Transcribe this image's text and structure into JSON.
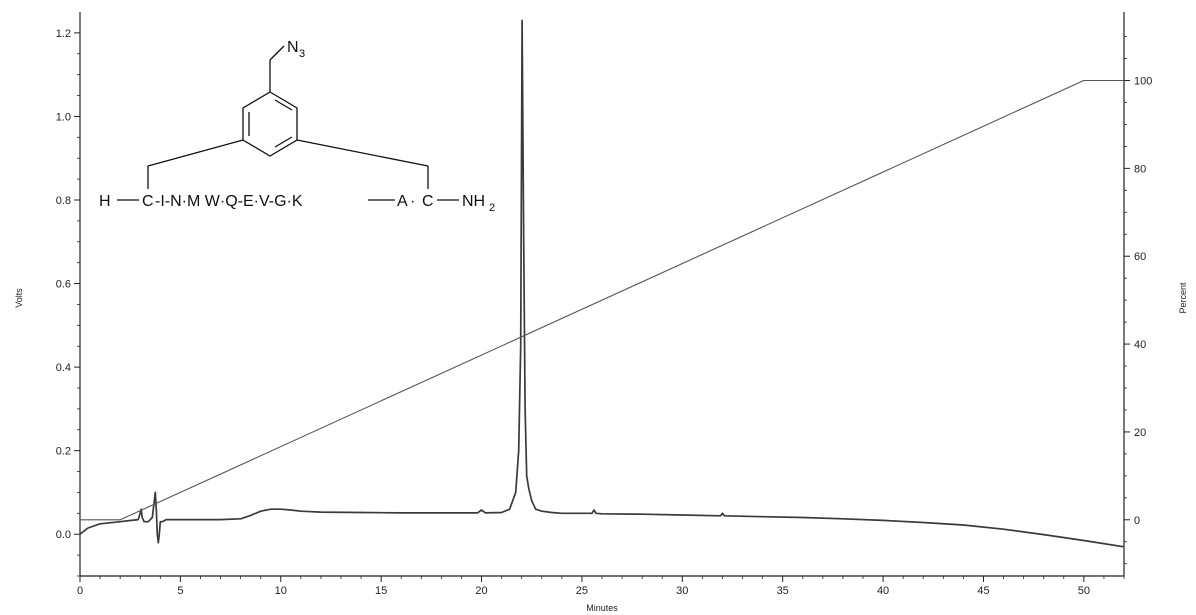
{
  "chart_data": {
    "type": "line",
    "xlabel": "Minutes",
    "ylabel": "Volts",
    "y2label": "Percent",
    "xlim": [
      0,
      52
    ],
    "ylim": [
      -0.1,
      1.25
    ],
    "y2lim": [
      -12.8,
      115.6
    ],
    "x_ticks": [
      0,
      5,
      10,
      15,
      20,
      25,
      30,
      35,
      40,
      45,
      50
    ],
    "y_ticks": [
      0.0,
      0.2,
      0.4,
      0.6,
      0.8,
      1.0,
      1.2
    ],
    "y_tick_labels": [
      "0.0",
      "0.2",
      "0.4",
      "0.6",
      "0.8",
      "1.0",
      "1.2"
    ],
    "y2_ticks": [
      0,
      20,
      40,
      60,
      80,
      100
    ],
    "grid": false,
    "colors": {
      "trace": "#3a3a3a",
      "gradient": "#555555",
      "axis": "#222222"
    },
    "series": [
      {
        "axis": "left",
        "x": [
          0,
          0.4,
          1,
          2,
          2.9,
          3.0,
          3.05,
          3.1,
          3.2,
          3.4,
          3.6,
          3.7,
          3.75,
          3.8,
          3.85,
          3.9,
          3.95,
          4.0,
          4.1,
          4.3,
          5,
          6,
          7,
          8,
          8.5,
          9,
          9.5,
          10,
          10.5,
          11,
          12,
          14,
          16,
          18,
          19.8,
          20.0,
          20.2,
          21.0,
          21.4,
          21.7,
          21.85,
          21.95,
          22.02,
          22.1,
          22.17,
          22.25,
          22.35,
          22.5,
          22.7,
          23.0,
          23.5,
          24,
          25,
          25.5,
          25.6,
          25.7,
          26,
          28,
          30,
          31.9,
          32.0,
          32.1,
          34,
          36,
          38,
          40,
          42,
          44,
          46,
          48,
          50,
          52
        ],
        "y": [
          0.0,
          0.015,
          0.025,
          0.03,
          0.035,
          0.05,
          0.06,
          0.04,
          0.03,
          0.03,
          0.04,
          0.08,
          0.1,
          0.06,
          0.0,
          -0.02,
          0.0,
          0.03,
          0.03,
          0.035,
          0.035,
          0.035,
          0.035,
          0.037,
          0.045,
          0.055,
          0.06,
          0.06,
          0.058,
          0.055,
          0.053,
          0.052,
          0.051,
          0.051,
          0.051,
          0.058,
          0.051,
          0.052,
          0.06,
          0.1,
          0.2,
          0.45,
          1.23,
          0.7,
          0.3,
          0.14,
          0.11,
          0.08,
          0.06,
          0.055,
          0.052,
          0.05,
          0.05,
          0.05,
          0.058,
          0.05,
          0.049,
          0.048,
          0.046,
          0.044,
          0.05,
          0.044,
          0.042,
          0.04,
          0.037,
          0.033,
          0.028,
          0.022,
          0.012,
          -0.001,
          -0.015,
          -0.03
        ]
      },
      {
        "axis": "right",
        "x": [
          0,
          2.0,
          50,
          52
        ],
        "y": [
          0,
          0,
          100,
          100
        ]
      }
    ]
  },
  "structure": {
    "azide_label": "N",
    "azide_subscript": "3",
    "sequence_prefix": "H",
    "first_linked_residue": "C",
    "sequence_middle": "-I-N·M W·Q-E·V-G·K",
    "penultimate_residue": "A",
    "last_linked_residue": "C",
    "c_terminus": "NH",
    "c_terminus_subscript": "2"
  }
}
